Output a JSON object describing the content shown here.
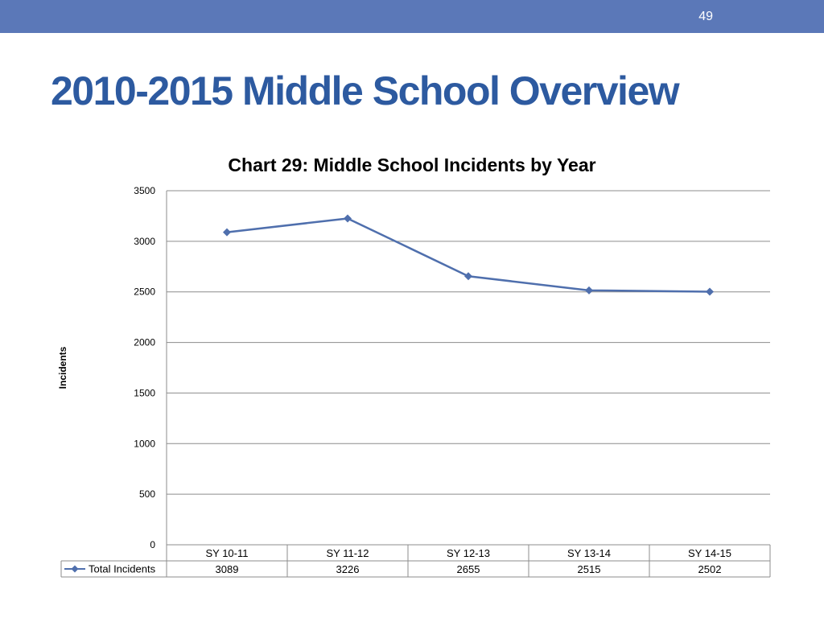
{
  "header": {
    "slide_number": "49",
    "bar_color": "#5b78b8"
  },
  "title": "2010-2015 Middle School Overview",
  "title_color": "#2d5aa0",
  "chart_data": {
    "type": "line",
    "title": "Chart 29: Middle School Incidents by Year",
    "xlabel": "",
    "ylabel": "Incidents",
    "categories": [
      "SY 10-11",
      "SY 11-12",
      "SY 12-13",
      "SY 13-14",
      "SY 14-15"
    ],
    "series": [
      {
        "name": "Total Incidents",
        "values": [
          3089,
          3226,
          2655,
          2515,
          2502
        ],
        "color": "#4f6fad",
        "marker": "diamond"
      }
    ],
    "ylim": [
      0,
      3500
    ],
    "yticks": [
      0,
      500,
      1000,
      1500,
      2000,
      2500,
      3000,
      3500
    ],
    "grid": true,
    "legend": "data-table",
    "data_table": true
  }
}
